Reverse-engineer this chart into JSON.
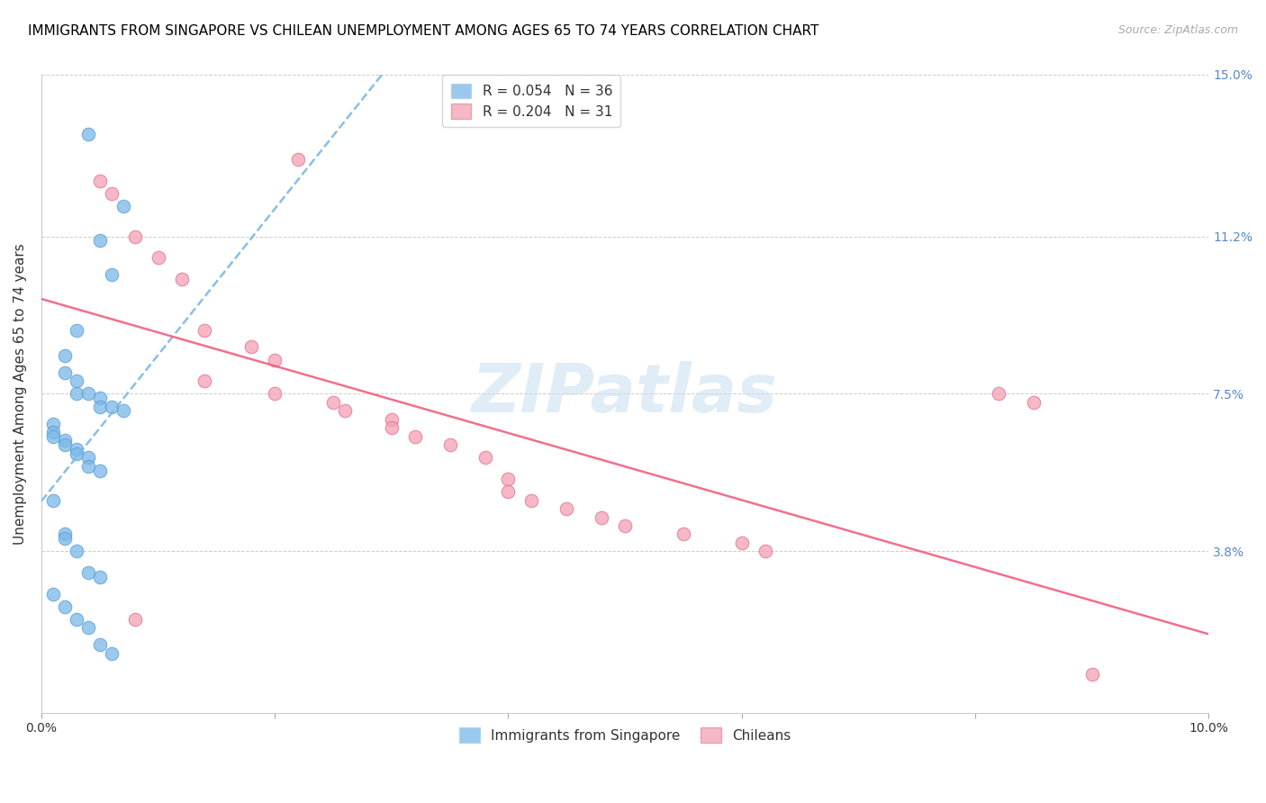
{
  "title": "IMMIGRANTS FROM SINGAPORE VS CHILEAN UNEMPLOYMENT AMONG AGES 65 TO 74 YEARS CORRELATION CHART",
  "source": "Source: ZipAtlas.com",
  "ylabel": "Unemployment Among Ages 65 to 74 years",
  "xlim": [
    0.0,
    0.1
  ],
  "ylim": [
    0.0,
    0.15
  ],
  "xticks": [
    0.0,
    0.02,
    0.04,
    0.06,
    0.08,
    0.1
  ],
  "xticklabels": [
    "0.0%",
    "",
    "",
    "",
    "",
    "10.0%"
  ],
  "yticks": [
    0.0,
    0.038,
    0.075,
    0.112,
    0.15
  ],
  "yticklabels": [
    "",
    "3.8%",
    "7.5%",
    "11.2%",
    "15.0%"
  ],
  "legend_top": [
    {
      "label": "R = 0.054   N = 36",
      "color": "#7ab8e8"
    },
    {
      "label": "R = 0.204   N = 31",
      "color": "#f4a0b5"
    }
  ],
  "legend_bottom": [
    {
      "label": "Immigrants from Singapore",
      "color": "#7ab8e8"
    },
    {
      "label": "Chileans",
      "color": "#f4a0b5"
    }
  ],
  "singapore_x": [
    0.004,
    0.007,
    0.005,
    0.006,
    0.003,
    0.002,
    0.002,
    0.003,
    0.003,
    0.004,
    0.005,
    0.005,
    0.006,
    0.007,
    0.001,
    0.001,
    0.001,
    0.002,
    0.002,
    0.003,
    0.003,
    0.004,
    0.004,
    0.005,
    0.001,
    0.002,
    0.002,
    0.003,
    0.004,
    0.005,
    0.001,
    0.002,
    0.003,
    0.004,
    0.005,
    0.006
  ],
  "singapore_y": [
    0.136,
    0.119,
    0.111,
    0.103,
    0.09,
    0.084,
    0.08,
    0.078,
    0.075,
    0.075,
    0.074,
    0.072,
    0.072,
    0.071,
    0.068,
    0.066,
    0.065,
    0.064,
    0.063,
    0.062,
    0.061,
    0.06,
    0.058,
    0.057,
    0.05,
    0.042,
    0.041,
    0.038,
    0.033,
    0.032,
    0.028,
    0.025,
    0.022,
    0.02,
    0.016,
    0.014
  ],
  "chilean_x": [
    0.005,
    0.006,
    0.008,
    0.01,
    0.012,
    0.014,
    0.018,
    0.02,
    0.022,
    0.014,
    0.02,
    0.025,
    0.026,
    0.03,
    0.03,
    0.032,
    0.035,
    0.038,
    0.04,
    0.04,
    0.042,
    0.045,
    0.048,
    0.05,
    0.055,
    0.06,
    0.062,
    0.082,
    0.008,
    0.085,
    0.09
  ],
  "chilean_y": [
    0.125,
    0.122,
    0.112,
    0.107,
    0.102,
    0.09,
    0.086,
    0.083,
    0.13,
    0.078,
    0.075,
    0.073,
    0.071,
    0.069,
    0.067,
    0.065,
    0.063,
    0.06,
    0.055,
    0.052,
    0.05,
    0.048,
    0.046,
    0.044,
    0.042,
    0.04,
    0.038,
    0.075,
    0.022,
    0.073,
    0.009
  ],
  "sg_line_color": "#7ab8e8",
  "ch_line_color": "#f06080",
  "sg_dot_color": "#7ab8e8",
  "ch_dot_color": "#f4a0b5",
  "sg_dot_edge": "#5a9fd4",
  "ch_dot_edge": "#e07090",
  "bg_color": "#ffffff",
  "watermark": "ZIPatlas",
  "title_fontsize": 11,
  "ylabel_fontsize": 11,
  "tick_fontsize": 10,
  "right_tick_color": "#5588cc",
  "grid_color": "#cccccc",
  "source_color": "#aaaaaa"
}
